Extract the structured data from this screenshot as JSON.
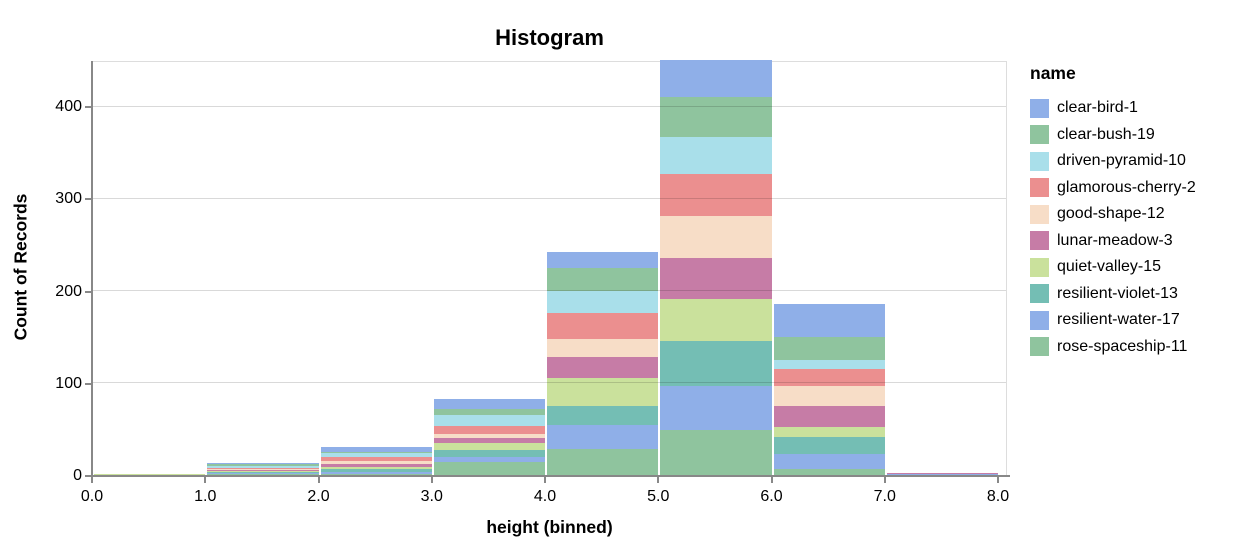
{
  "chart_data": {
    "type": "bar",
    "subtype": "stacked-histogram",
    "title": "Histogram",
    "xlabel": "height (binned)",
    "ylabel": "Count of Records",
    "bin_edges": [
      0,
      1,
      2,
      3,
      4,
      5,
      6,
      7,
      8
    ],
    "bin_labels": [
      "0-1",
      "1-2",
      "2-3",
      "3-4",
      "4-5",
      "5-6",
      "6-7",
      "7-8"
    ],
    "x_tick_labels": [
      "0.0",
      "1.0",
      "2.0",
      "3.0",
      "4.0",
      "5.0",
      "6.0",
      "7.0",
      "8.0"
    ],
    "y_ticks": [
      0,
      100,
      200,
      300,
      400
    ],
    "y_tick_labels": [
      "0",
      "100",
      "200",
      "300",
      "400"
    ],
    "ylim": [
      0,
      450
    ],
    "grid": "horizontal",
    "legend_title": "name",
    "legend_position": "right",
    "stack_order": "first series on top, last series at bottom",
    "series": [
      {
        "name": "clear-bird-1",
        "color": "#8FAFE8",
        "values": [
          0,
          1,
          5,
          10,
          18,
          40,
          35,
          0
        ]
      },
      {
        "name": "clear-bush-19",
        "color": "#8FC49E",
        "values": [
          0,
          2,
          1,
          7,
          24,
          43,
          25,
          0
        ]
      },
      {
        "name": "driven-pyramid-10",
        "color": "#A9DFEA",
        "values": [
          0,
          2,
          5,
          12,
          24,
          41,
          10,
          0
        ]
      },
      {
        "name": "glamorous-cherry-2",
        "color": "#EB8F8F",
        "values": [
          0,
          2,
          4,
          8,
          28,
          45,
          19,
          0
        ]
      },
      {
        "name": "good-shape-12",
        "color": "#F7DDC7",
        "values": [
          0,
          1,
          3,
          5,
          20,
          46,
          21,
          0
        ]
      },
      {
        "name": "lunar-meadow-3",
        "color": "#C67CA6",
        "values": [
          0,
          1,
          3,
          5,
          23,
          44,
          23,
          1
        ]
      },
      {
        "name": "quiet-valley-15",
        "color": "#CAE19C",
        "values": [
          1,
          1,
          3,
          8,
          30,
          46,
          11,
          0
        ]
      },
      {
        "name": "resilient-violet-13",
        "color": "#74BEB4",
        "values": [
          0,
          1,
          3,
          8,
          21,
          48,
          18,
          0
        ]
      },
      {
        "name": "resilient-water-17",
        "color": "#8FAFE8",
        "values": [
          0,
          1,
          2,
          5,
          26,
          48,
          16,
          1
        ]
      },
      {
        "name": "rose-spaceship-11",
        "color": "#8FC49E",
        "values": [
          0,
          1,
          1,
          14,
          28,
          49,
          7,
          0
        ]
      }
    ],
    "bin_totals": [
      1,
      13,
      30,
      82,
      242,
      450,
      185,
      2
    ],
    "axis_colors": {
      "domain": "#888888",
      "grid": "#d9d9d9",
      "view_border": "#dddddd",
      "label": "#000000"
    }
  }
}
